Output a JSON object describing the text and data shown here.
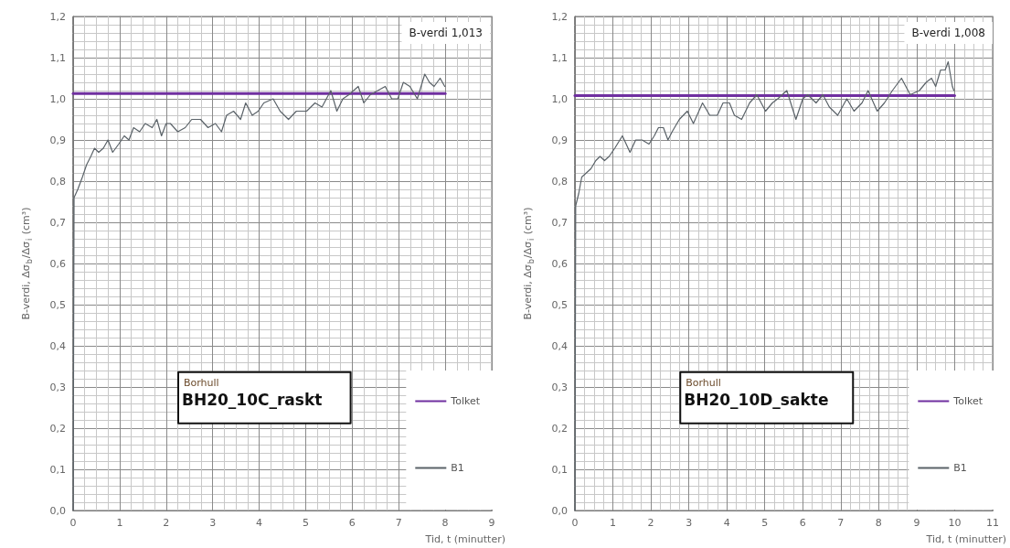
{
  "chart_data": [
    {
      "type": "line",
      "xlabel": "Tid, t (minutter)",
      "ylabel": "B-verdi, Δσ$_{b}$/Δσ$_{i}$ (cm³)",
      "annotations": [
        "B-verdi 1,013",
        "Borhull",
        "BH20_10C_raskt"
      ],
      "xlim": [
        0,
        9
      ],
      "xticks": [
        0,
        1,
        2,
        3,
        4,
        5,
        6,
        7,
        8,
        9
      ],
      "ylim": [
        0,
        1.2
      ],
      "yticks": [
        {
          "value": 0,
          "label": "0,0"
        },
        {
          "value": 0.1,
          "label": "0,1"
        },
        {
          "value": 0.2,
          "label": "0,2"
        },
        {
          "value": 0.3,
          "label": "0,3"
        },
        {
          "value": 0.4,
          "label": "0,4"
        },
        {
          "value": 0.5,
          "label": "0,5"
        },
        {
          "value": 0.6,
          "label": "0,6"
        },
        {
          "value": 0.7,
          "label": "0,7"
        },
        {
          "value": 0.8,
          "label": "0,8"
        },
        {
          "value": 0.9,
          "label": "0,9"
        },
        {
          "value": 1,
          "label": "1,0"
        },
        {
          "value": 1.1,
          "label": "1,1"
        },
        {
          "value": 1.2,
          "label": "1,2"
        }
      ],
      "grid": true,
      "legend": "bottom right",
      "marker": "none",
      "series": [
        {
          "name": "Tolket",
          "color": "#7030a0",
          "x": [
            0,
            8
          ],
          "values": [
            1.013,
            1.013
          ]
        },
        {
          "name": "B1",
          "color": "#5a6268",
          "x": [
            0,
            0.02,
            0.1,
            0.2,
            0.29,
            0.38,
            0.46,
            0.55,
            0.65,
            0.75,
            0.85,
            0.98,
            1.1,
            1.2,
            1.3,
            1.43,
            1.55,
            1.7,
            1.8,
            1.9,
            2.0,
            2.09,
            2.25,
            2.41,
            2.55,
            2.74,
            2.9,
            3.06,
            3.19,
            3.3,
            3.45,
            3.6,
            3.71,
            3.85,
            3.98,
            4.1,
            4.3,
            4.45,
            4.63,
            4.8,
            5.02,
            5.2,
            5.35,
            5.54,
            5.67,
            5.8,
            5.93,
            6.13,
            6.25,
            6.39,
            6.55,
            6.71,
            6.85,
            6.98,
            7.1,
            7.24,
            7.4,
            7.56,
            7.66,
            7.76,
            7.89,
            7.99
          ],
          "values": [
            0,
            0.76,
            0.78,
            0.81,
            0.84,
            0.86,
            0.88,
            0.87,
            0.88,
            0.9,
            0.87,
            0.89,
            0.91,
            0.9,
            0.93,
            0.92,
            0.94,
            0.93,
            0.95,
            0.91,
            0.94,
            0.94,
            0.92,
            0.93,
            0.95,
            0.95,
            0.93,
            0.94,
            0.92,
            0.96,
            0.97,
            0.95,
            0.99,
            0.96,
            0.97,
            0.99,
            1.0,
            0.97,
            0.95,
            0.97,
            0.97,
            0.99,
            0.98,
            1.02,
            0.97,
            1.0,
            1.01,
            1.03,
            0.99,
            1.01,
            1.02,
            1.03,
            1.0,
            1.0,
            1.04,
            1.03,
            1.0,
            1.06,
            1.04,
            1.03,
            1.05,
            1.03
          ]
        }
      ]
    },
    {
      "type": "line",
      "xlabel": "Tid, t (minutter)",
      "ylabel": "B-verdi, Δσ$_{b}$/Δσ$_{i}$ (cm³)",
      "annotations": [
        "B-verdi 1,008",
        "Borhull",
        "BH20_10D_sakte"
      ],
      "xlim": [
        0,
        11
      ],
      "xticks": [
        0,
        1,
        2,
        3,
        4,
        5,
        6,
        7,
        8,
        9,
        10,
        11
      ],
      "ylim": [
        0,
        1.2
      ],
      "yticks": [
        {
          "value": 0,
          "label": "0,0"
        },
        {
          "value": 0.1,
          "label": "0,1"
        },
        {
          "value": 0.2,
          "label": "0,2"
        },
        {
          "value": 0.3,
          "label": "0,3"
        },
        {
          "value": 0.4,
          "label": "0,4"
        },
        {
          "value": 0.5,
          "label": "0,5"
        },
        {
          "value": 0.6,
          "label": "0,6"
        },
        {
          "value": 0.7,
          "label": "0,7"
        },
        {
          "value": 0.8,
          "label": "0,8"
        },
        {
          "value": 0.9,
          "label": "0,9"
        },
        {
          "value": 1,
          "label": "1,0"
        },
        {
          "value": 1.1,
          "label": "1,1"
        },
        {
          "value": 1.2,
          "label": "1,2"
        }
      ],
      "grid": true,
      "legend": "bottom right",
      "marker": "none",
      "series": [
        {
          "name": "Tolket",
          "color": "#7030a0",
          "x": [
            0,
            10
          ],
          "values": [
            1.008,
            1.008
          ]
        },
        {
          "name": "B1",
          "color": "#5a6268",
          "x": [
            0,
            0.02,
            0.1,
            0.18,
            0.3,
            0.42,
            0.55,
            0.66,
            0.78,
            0.9,
            1.05,
            1.25,
            1.45,
            1.6,
            1.77,
            1.95,
            2.09,
            2.2,
            2.33,
            2.45,
            2.56,
            2.75,
            2.96,
            3.12,
            3.36,
            3.55,
            3.75,
            3.9,
            4.07,
            4.2,
            4.39,
            4.6,
            4.79,
            5.02,
            5.2,
            5.34,
            5.58,
            5.82,
            6.0,
            6.13,
            6.35,
            6.53,
            6.7,
            6.92,
            7.16,
            7.35,
            7.56,
            7.72,
            7.96,
            8.15,
            8.36,
            8.6,
            8.83,
            9.07,
            9.25,
            9.39,
            9.5,
            9.63,
            9.75,
            9.83,
            9.94,
            9.98
          ],
          "values": [
            0,
            0.74,
            0.77,
            0.81,
            0.82,
            0.83,
            0.85,
            0.86,
            0.85,
            0.86,
            0.88,
            0.91,
            0.87,
            0.9,
            0.9,
            0.89,
            0.91,
            0.93,
            0.93,
            0.9,
            0.92,
            0.95,
            0.97,
            0.94,
            0.99,
            0.96,
            0.96,
            0.99,
            0.99,
            0.96,
            0.95,
            0.99,
            1.01,
            0.97,
            0.99,
            1.0,
            1.02,
            0.95,
            1.0,
            1.01,
            0.99,
            1.01,
            0.98,
            0.96,
            1.0,
            0.97,
            0.99,
            1.02,
            0.97,
            0.99,
            1.02,
            1.05,
            1.01,
            1.02,
            1.04,
            1.05,
            1.03,
            1.07,
            1.07,
            1.09,
            1.03,
            1.02
          ]
        }
      ]
    }
  ]
}
